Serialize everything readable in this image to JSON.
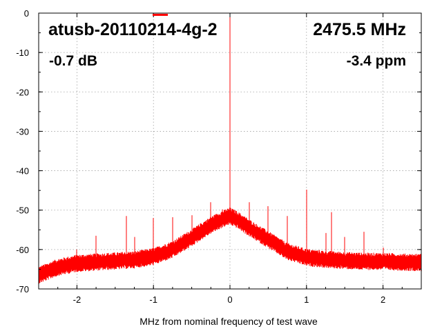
{
  "chart_data": {
    "type": "line",
    "title": "",
    "xlabel": "MHz from nominal frequency of test wave",
    "ylabel": "",
    "xlim": [
      -2.5,
      2.5
    ],
    "ylim": [
      -70,
      0
    ],
    "grid": true,
    "legend": "top-center",
    "x_ticks": [
      -2,
      -1,
      0,
      1,
      2
    ],
    "x_tick_labels": [
      "-2",
      "-1",
      "0",
      "1",
      "2"
    ],
    "y_ticks": [
      0,
      -10,
      -20,
      -30,
      -40,
      -50,
      -60,
      -70
    ],
    "y_tick_labels": [
      "0",
      "-10",
      "-20",
      "-30",
      "-40",
      "-50",
      "-60",
      "-70"
    ],
    "series": [
      {
        "color": "#ff0000",
        "baseline": {
          "x": [
            -2.5,
            -2.25,
            -2.0,
            -1.75,
            -1.5,
            -1.25,
            -1.0,
            -0.75,
            -0.5,
            -0.25,
            -0.1,
            0.0,
            0.1,
            0.25,
            0.5,
            0.75,
            1.0,
            1.25,
            1.5,
            1.75,
            2.0,
            2.25,
            2.5
          ],
          "y": [
            -66.5,
            -64.5,
            -63.5,
            -63.2,
            -62.9,
            -62.6,
            -61.8,
            -60.0,
            -57.0,
            -53.8,
            -52.3,
            -51.5,
            -52.5,
            -54.5,
            -57.5,
            -60.5,
            -62.0,
            -62.5,
            -62.8,
            -63.0,
            -63.0,
            -63.2,
            -63.3
          ]
        },
        "spurs": {
          "x": [
            -2.0,
            -1.75,
            -1.35,
            -1.25,
            -1.0,
            -0.75,
            -0.5,
            -0.25,
            -0.1,
            0.0,
            0.25,
            0.5,
            0.75,
            1.0,
            1.25,
            1.33,
            1.5,
            1.75,
            2.0
          ],
          "y": [
            -60.0,
            -56.5,
            -51.5,
            -56.8,
            -52.0,
            -51.8,
            -51.3,
            -48.0,
            -49.8,
            0.0,
            -48.0,
            -49.0,
            -51.5,
            -44.8,
            -55.8,
            -50.5,
            -56.8,
            -55.5,
            -59.5
          ]
        }
      }
    ],
    "annotations": {
      "device": "atusb-20110214-4g-2",
      "frequency": "2475.5 MHz",
      "level": "-0.7 dB",
      "offset": "-3.4 ppm"
    }
  }
}
